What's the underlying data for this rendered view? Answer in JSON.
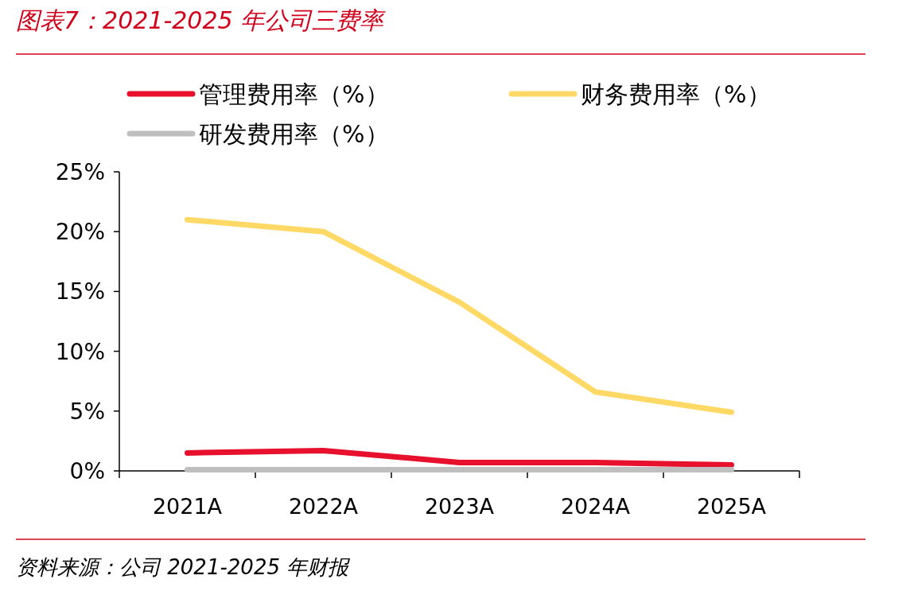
{
  "chart_data": {
    "type": "line",
    "title": "图表7：2021-2025 年公司三费率",
    "annotations": [
      "资料来源：公司 2021-2025 年财报"
    ],
    "categories": [
      "2021A",
      "2022A",
      "2023A",
      "2024A",
      "2025A"
    ],
    "series": [
      {
        "name": "管理费用率（%）",
        "color": "#e8112d",
        "values": [
          1.5,
          1.7,
          0.7,
          0.7,
          0.5
        ]
      },
      {
        "name": "财务费用率（%）",
        "color": "#ffd966",
        "values": [
          21.0,
          20.0,
          14.1,
          6.6,
          4.9
        ]
      },
      {
        "name": "研发费用率（%）",
        "color": "#bfbfbf",
        "values": [
          0.1,
          0.1,
          0.1,
          0.1,
          0.1
        ]
      }
    ],
    "ylim": [
      0,
      25
    ],
    "yticks": [
      {
        "value": 0,
        "label": "0%"
      },
      {
        "value": 5,
        "label": "5%"
      },
      {
        "value": 10,
        "label": "10%"
      },
      {
        "value": 15,
        "label": "15%"
      },
      {
        "value": 20,
        "label": "20%"
      },
      {
        "value": 25,
        "label": "25%"
      }
    ],
    "legend": "top"
  }
}
